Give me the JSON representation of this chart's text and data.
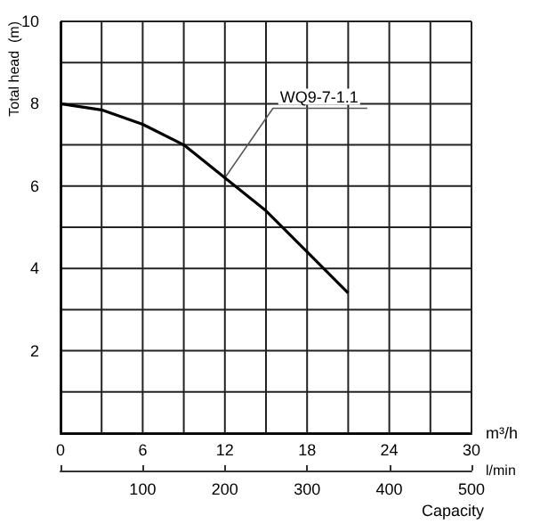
{
  "chart_data": {
    "type": "line",
    "xlabel": "m³/h",
    "x2label": "l/min",
    "ylabel": "Total head  (m)",
    "annotations": [
      {
        "text": "WQ9-7-1.1",
        "x": 12,
        "y": 6.2
      },
      "Capacity"
    ],
    "x": [
      0,
      3,
      6,
      9,
      12,
      15,
      18,
      21
    ],
    "series": [
      {
        "color": "#000000",
        "values": [
          8,
          7.85,
          7.5,
          7.0,
          6.2,
          5.4,
          4.4,
          3.4
        ]
      }
    ],
    "xlim": [
      0,
      30
    ],
    "xticks": [
      0,
      {
        "value": 3,
        "label": null
      },
      6,
      {
        "value": 9,
        "label": null
      },
      12,
      {
        "value": 15,
        "label": null
      },
      18,
      {
        "value": 21,
        "label": null
      },
      24,
      {
        "value": 27,
        "label": null
      },
      30
    ],
    "ylim": [
      0,
      10
    ],
    "yticks": [
      {
        "value": 0,
        "label": null
      },
      {
        "value": 1,
        "label": null
      },
      2,
      {
        "value": 3,
        "label": null
      },
      4,
      {
        "value": 5,
        "label": null
      },
      6,
      {
        "value": 7,
        "label": null
      },
      8,
      {
        "value": 9,
        "label": null
      },
      10
    ],
    "x2lim": [
      0,
      500
    ],
    "x2ticks": [
      {
        "value": 0,
        "label": null
      },
      100,
      200,
      300,
      400,
      500
    ],
    "grid": true,
    "marker": "none",
    "line_style": "solid"
  }
}
